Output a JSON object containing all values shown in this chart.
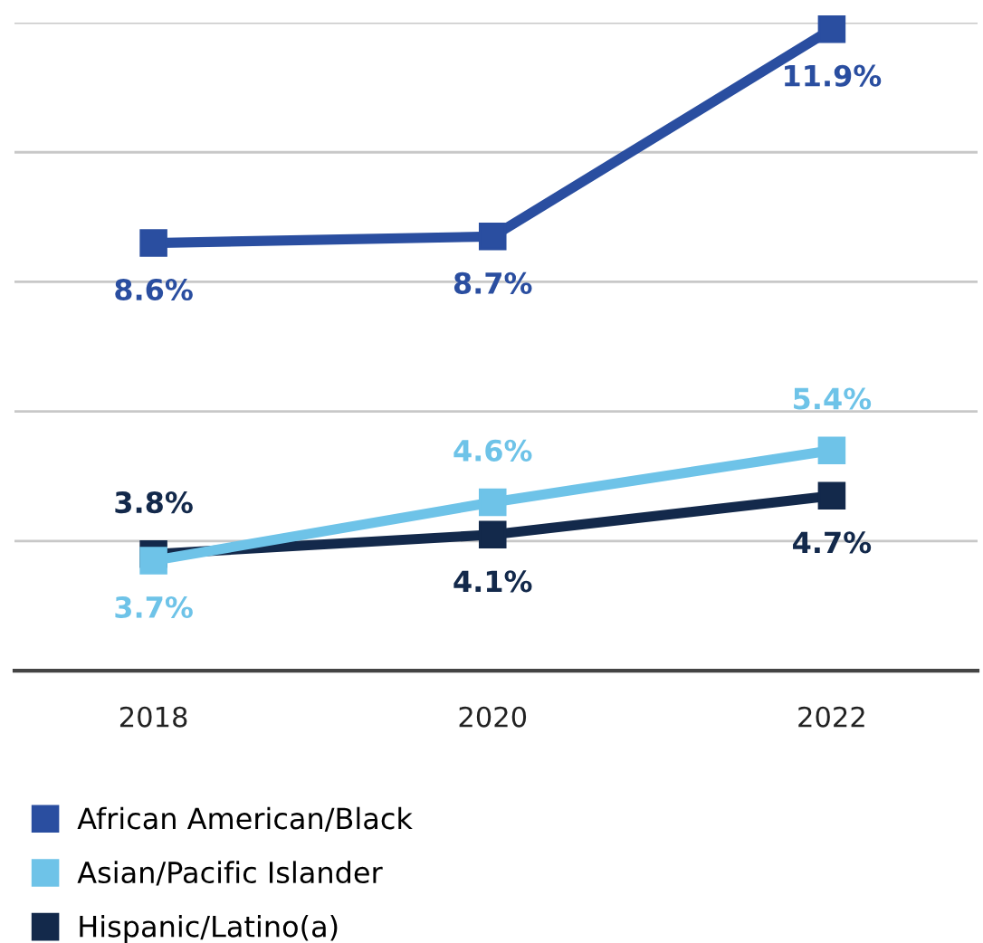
{
  "chart_data": {
    "type": "line",
    "categories": [
      "2018",
      "2020",
      "2022"
    ],
    "series": [
      {
        "name": "African American/Black",
        "color": "#2a4ea0",
        "values": [
          8.6,
          8.7,
          11.9
        ],
        "value_labels": [
          "8.6%",
          "8.7%",
          "11.9%"
        ]
      },
      {
        "name": "Asian/Pacific Islander",
        "color": "#6ec3e8",
        "values": [
          3.7,
          4.6,
          5.4
        ],
        "value_labels": [
          "3.7%",
          "4.6%",
          "5.4%"
        ]
      },
      {
        "name": "Hispanic/Latino(a)",
        "color": "#13294b",
        "values": [
          3.8,
          4.1,
          4.7
        ],
        "value_labels": [
          "3.8%",
          "4.1%",
          "4.7%"
        ]
      }
    ],
    "ylim": [
      2,
      12
    ],
    "yticks": [
      {
        "value": 2,
        "label": null
      },
      {
        "value": 4,
        "label": null
      },
      {
        "value": 6,
        "label": null
      },
      {
        "value": 8,
        "label": null
      },
      {
        "value": 10,
        "label": null
      },
      {
        "value": 12,
        "label": null
      }
    ],
    "tick_labels": "x",
    "grid": "y",
    "legend": "bottom",
    "marker": "square",
    "line_style": "solid"
  }
}
